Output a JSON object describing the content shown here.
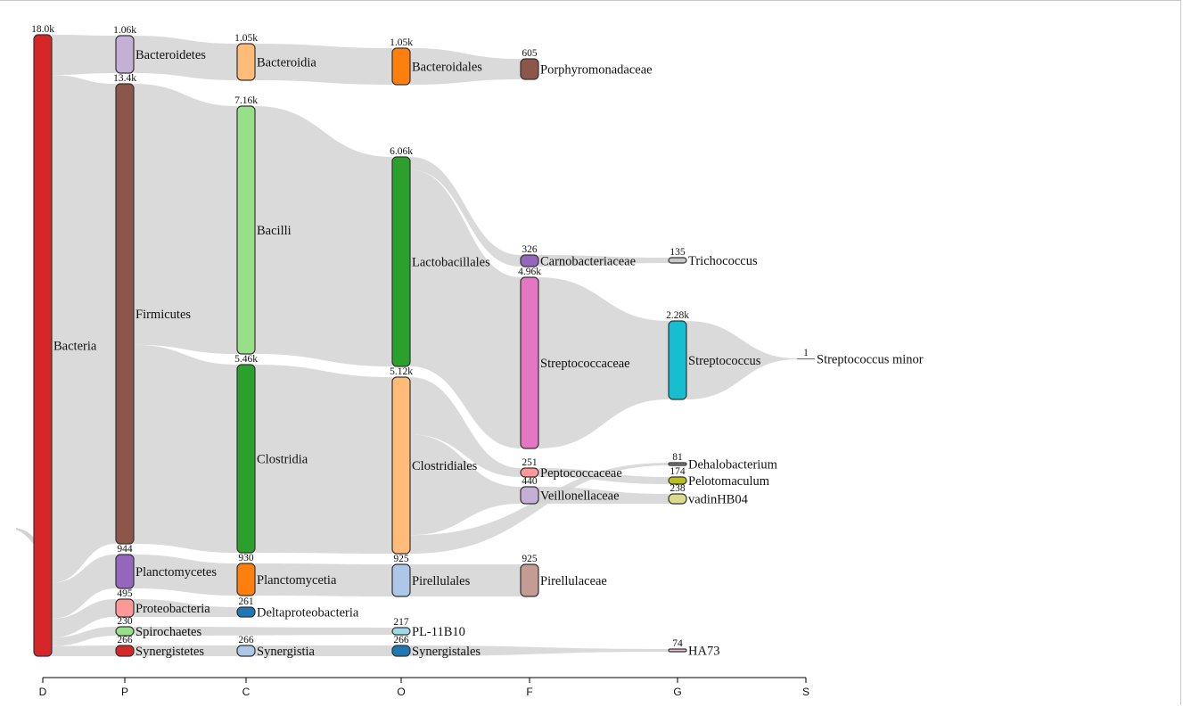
{
  "chart_data": {
    "type": "sankey",
    "axis": {
      "ranks": [
        "D",
        "P",
        "C",
        "O",
        "F",
        "G",
        "S"
      ]
    },
    "nodes": [
      {
        "id": "Bacteria",
        "rank": "D",
        "label": "Bacteria",
        "count": "18.0k",
        "color": "#d62728"
      },
      {
        "id": "Bacteroidetes",
        "rank": "P",
        "label": "Bacteroidetes",
        "count": "1.06k",
        "color": "#c5b0d5"
      },
      {
        "id": "Firmicutes",
        "rank": "P",
        "label": "Firmicutes",
        "count": "13.4k",
        "color": "#8c564b"
      },
      {
        "id": "Planctomycetes",
        "rank": "P",
        "label": "Planctomycetes",
        "count": "944",
        "color": "#9467bd"
      },
      {
        "id": "Proteobacteria",
        "rank": "P",
        "label": "Proteobacteria",
        "count": "495",
        "color": "#ff9896"
      },
      {
        "id": "Spirochaetes",
        "rank": "P",
        "label": "Spirochaetes",
        "count": "230",
        "color": "#98df8a"
      },
      {
        "id": "Synergistetes",
        "rank": "P",
        "label": "Synergistetes",
        "count": "266",
        "color": "#d62728"
      },
      {
        "id": "Bacteroidia",
        "rank": "C",
        "label": "Bacteroidia",
        "count": "1.05k",
        "color": "#ffbb78"
      },
      {
        "id": "Bacilli",
        "rank": "C",
        "label": "Bacilli",
        "count": "7.16k",
        "color": "#98df8a"
      },
      {
        "id": "Clostridia",
        "rank": "C",
        "label": "Clostridia",
        "count": "5.46k",
        "color": "#2ca02c"
      },
      {
        "id": "Planctomycetia",
        "rank": "C",
        "label": "Planctomycetia",
        "count": "930",
        "color": "#ff7f0e"
      },
      {
        "id": "Deltaproteobacteria",
        "rank": "C",
        "label": "Deltaproteobacteria",
        "count": "261",
        "color": "#1f77b4"
      },
      {
        "id": "Synergistia",
        "rank": "C",
        "label": "Synergistia",
        "count": "266",
        "color": "#aec7e8"
      },
      {
        "id": "Bacteroidales",
        "rank": "O",
        "label": "Bacteroidales",
        "count": "1.05k",
        "color": "#ff7f0e"
      },
      {
        "id": "Lactobacillales",
        "rank": "O",
        "label": "Lactobacillales",
        "count": "6.06k",
        "color": "#2ca02c"
      },
      {
        "id": "Clostridiales",
        "rank": "O",
        "label": "Clostridiales",
        "count": "5.12k",
        "color": "#ffbb78"
      },
      {
        "id": "Pirellulales",
        "rank": "O",
        "label": "Pirellulales",
        "count": "925",
        "color": "#aec7e8"
      },
      {
        "id": "PL-11B10",
        "rank": "O",
        "label": "PL-11B10",
        "count": "217",
        "color": "#9edae5"
      },
      {
        "id": "Synergistales",
        "rank": "O",
        "label": "Synergistales",
        "count": "266",
        "color": "#1f77b4"
      },
      {
        "id": "Porphyromonadaceae",
        "rank": "F",
        "label": "Porphyromonadaceae",
        "count": "605",
        "color": "#8c564b"
      },
      {
        "id": "Carnobacteriaceae",
        "rank": "F",
        "label": "Carnobacteriaceae",
        "count": "326",
        "color": "#9467bd"
      },
      {
        "id": "Streptococcaceae",
        "rank": "F",
        "label": "Streptococcaceae",
        "count": "4.96k",
        "color": "#e377c2"
      },
      {
        "id": "Peptococcaceae",
        "rank": "F",
        "label": "Peptococcaceae",
        "count": "251",
        "color": "#ff9896"
      },
      {
        "id": "Veillonellaceae",
        "rank": "F",
        "label": "Veillonellaceae",
        "count": "440",
        "color": "#c5b0d5"
      },
      {
        "id": "Pirellulaceae",
        "rank": "F",
        "label": "Pirellulaceae",
        "count": "925",
        "color": "#c49c94"
      },
      {
        "id": "Trichococcus",
        "rank": "G",
        "label": "Trichococcus",
        "count": "135",
        "color": "#c7c7c7"
      },
      {
        "id": "Streptococcus",
        "rank": "G",
        "label": "Streptococcus",
        "count": "2.28k",
        "color": "#17becf"
      },
      {
        "id": "Dehalobacterium",
        "rank": "G",
        "label": "Dehalobacterium",
        "count": "81",
        "color": "#7f7f7f"
      },
      {
        "id": "Pelotomaculum",
        "rank": "G",
        "label": "Pelotomaculum",
        "count": "174",
        "color": "#bcbd22"
      },
      {
        "id": "vadinHB04",
        "rank": "G",
        "label": "vadinHB04",
        "count": "238",
        "color": "#dbdb8d"
      },
      {
        "id": "HA73",
        "rank": "G",
        "label": "HA73",
        "count": "74",
        "color": "#f7b6d2"
      },
      {
        "id": "Streptococcus minor",
        "rank": "S",
        "label": "Streptococcus minor",
        "count": "1",
        "color": "#999999"
      }
    ],
    "links": [
      {
        "source": "Bacteria",
        "target": "Bacteroidetes",
        "value": 1060
      },
      {
        "source": "Bacteria",
        "target": "Firmicutes",
        "value": 13400
      },
      {
        "source": "Bacteria",
        "target": "Planctomycetes",
        "value": 944
      },
      {
        "source": "Bacteria",
        "target": "Proteobacteria",
        "value": 495
      },
      {
        "source": "Bacteria",
        "target": "Spirochaetes",
        "value": 230
      },
      {
        "source": "Bacteria",
        "target": "Synergistetes",
        "value": 266
      },
      {
        "source": "Bacteroidetes",
        "target": "Bacteroidia",
        "value": 1050
      },
      {
        "source": "Firmicutes",
        "target": "Bacilli",
        "value": 7160
      },
      {
        "source": "Firmicutes",
        "target": "Clostridia",
        "value": 5460
      },
      {
        "source": "Planctomycetes",
        "target": "Planctomycetia",
        "value": 930
      },
      {
        "source": "Proteobacteria",
        "target": "Deltaproteobacteria",
        "value": 261
      },
      {
        "source": "Synergistetes",
        "target": "Synergistia",
        "value": 266
      },
      {
        "source": "Bacteroidia",
        "target": "Bacteroidales",
        "value": 1050
      },
      {
        "source": "Bacilli",
        "target": "Lactobacillales",
        "value": 6060
      },
      {
        "source": "Clostridia",
        "target": "Clostridiales",
        "value": 5120
      },
      {
        "source": "Planctomycetia",
        "target": "Pirellulales",
        "value": 925
      },
      {
        "source": "Spirochaetes",
        "target": "PL-11B10",
        "value": 217
      },
      {
        "source": "Synergistia",
        "target": "Synergistales",
        "value": 266
      },
      {
        "source": "Bacteroidales",
        "target": "Porphyromonadaceae",
        "value": 605
      },
      {
        "source": "Lactobacillales",
        "target": "Carnobacteriaceae",
        "value": 326
      },
      {
        "source": "Lactobacillales",
        "target": "Streptococcaceae",
        "value": 4960
      },
      {
        "source": "Clostridiales",
        "target": "Peptococcaceae",
        "value": 251
      },
      {
        "source": "Clostridiales",
        "target": "Veillonellaceae",
        "value": 440
      },
      {
        "source": "Pirellulales",
        "target": "Pirellulaceae",
        "value": 925
      },
      {
        "source": "Carnobacteriaceae",
        "target": "Trichococcus",
        "value": 135
      },
      {
        "source": "Streptococcaceae",
        "target": "Streptococcus",
        "value": 2280
      },
      {
        "source": "Clostridiales",
        "target": "Dehalobacterium",
        "value": 81
      },
      {
        "source": "Peptococcaceae",
        "target": "Pelotomaculum",
        "value": 174
      },
      {
        "source": "Veillonellaceae",
        "target": "vadinHB04",
        "value": 238
      },
      {
        "source": "Synergistales",
        "target": "HA73",
        "value": 74
      },
      {
        "source": "Streptococcus",
        "target": "Streptococcus minor",
        "value": 1
      }
    ],
    "link_color": "#d3d3d3",
    "node_stroke": "#333333"
  }
}
